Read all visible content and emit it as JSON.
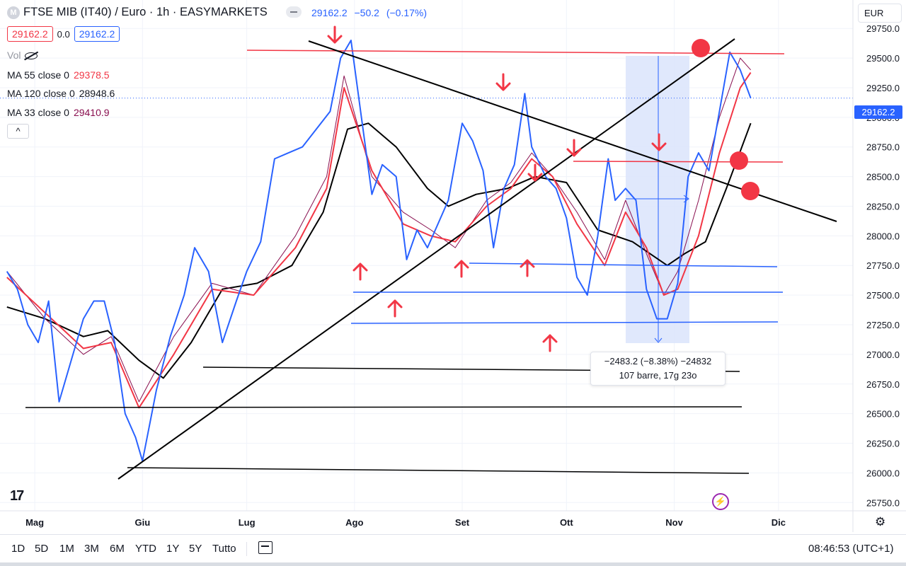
{
  "header": {
    "title": "FTSE MIB (IT40) / Euro · 1h · EASYMARKETS",
    "symbol_letter": "M",
    "last_price": "29162.2",
    "change": "−50.2",
    "change_pct": "(−0.17%)",
    "bid": "29162.2",
    "spread": "0.0",
    "ask": "29162.2",
    "currency": "EUR"
  },
  "legend": {
    "vol_label": "Vol",
    "ma55_label": "MA 55 close 0",
    "ma55_value": "29378.5",
    "ma120_label": "MA 120 close 0",
    "ma120_value": "28948.6",
    "ma33_label": "MA 33 close 0",
    "ma33_value": "29410.9",
    "collapse_glyph": "^"
  },
  "measure": {
    "line1": "−2483.2 (−8.38%) −24832",
    "line2": "107 barre, 17g 23o"
  },
  "toolbar": {
    "ranges": [
      "1D",
      "5D",
      "1M",
      "3M",
      "6M",
      "YTD",
      "1Y",
      "5Y",
      "Tutto"
    ],
    "clock": "08:46:53 (UTC+1)"
  },
  "logo_text": "17",
  "colors": {
    "price_line": "#2962ff",
    "ma_fast": "#f23645",
    "ma_mid": "#880e4f",
    "ma_slow": "#000000",
    "annotation_red": "#f23645",
    "measure_fill": "#dbe4fb"
  },
  "chart_data": {
    "type": "line",
    "title": "FTSE MIB (IT40) / Euro · 1h · EASYMARKETS",
    "xlabel": "",
    "ylabel": "",
    "x_ticks": [
      "Mag",
      "Giu",
      "Lug",
      "Ago",
      "Set",
      "Ott",
      "Nov",
      "Dic"
    ],
    "y_ticks": [
      29750,
      29500,
      29250,
      29000,
      28750,
      28500,
      28250,
      28000,
      27750,
      27500,
      27250,
      27000,
      26750,
      26500,
      26250,
      26000,
      25750
    ],
    "ylim": [
      25680,
      29990
    ],
    "grid": true,
    "series": [
      {
        "name": "FTSE MIB (IT40)",
        "x": [
          "2023-04-23",
          "2023-04-26",
          "2023-04-29",
          "2023-05-02",
          "2023-05-05",
          "2023-05-08",
          "2023-05-11",
          "2023-05-15",
          "2023-05-18",
          "2023-05-21",
          "2023-05-24",
          "2023-05-27",
          "2023-05-30",
          "2023-06-01",
          "2023-06-05",
          "2023-06-09",
          "2023-06-13",
          "2023-06-16",
          "2023-06-20",
          "2023-06-24",
          "2023-06-28",
          "2023-07-01",
          "2023-07-05",
          "2023-07-09",
          "2023-07-13",
          "2023-07-17",
          "2023-07-21",
          "2023-07-25",
          "2023-07-28",
          "2023-07-31",
          "2023-08-03",
          "2023-08-06",
          "2023-08-09",
          "2023-08-13",
          "2023-08-16",
          "2023-08-19",
          "2023-08-22",
          "2023-08-25",
          "2023-08-28",
          "2023-09-01",
          "2023-09-04",
          "2023-09-07",
          "2023-09-10",
          "2023-09-13",
          "2023-09-16",
          "2023-09-19",
          "2023-09-21",
          "2023-09-25",
          "2023-09-28",
          "2023-10-01",
          "2023-10-04",
          "2023-10-07",
          "2023-10-10",
          "2023-10-13",
          "2023-10-15",
          "2023-10-18",
          "2023-10-21",
          "2023-10-24",
          "2023-10-27",
          "2023-10-30",
          "2023-11-02",
          "2023-11-05",
          "2023-11-08",
          "2023-11-11",
          "2023-11-14",
          "2023-11-17",
          "2023-11-20",
          "2023-11-23"
        ],
        "values": [
          27700,
          27550,
          27250,
          27100,
          27450,
          26600,
          26900,
          27300,
          27450,
          27450,
          27100,
          26500,
          26300,
          26100,
          26700,
          27150,
          27500,
          27900,
          27700,
          27100,
          27450,
          27700,
          27950,
          28650,
          28700,
          28750,
          28900,
          29050,
          29500,
          29650,
          29000,
          28350,
          28600,
          28500,
          27800,
          28050,
          27900,
          28100,
          28300,
          28950,
          28800,
          28550,
          27900,
          28400,
          28600,
          29200,
          28750,
          28500,
          28400,
          28150,
          27650,
          27500,
          28000,
          28650,
          28300,
          28400,
          28300,
          27550,
          27300,
          27300,
          27600,
          28500,
          28700,
          28550,
          29050,
          29550,
          29400,
          29162
        ]
      },
      {
        "name": "MA 33 close 0",
        "x": [
          "2023-04-23",
          "2023-05-04",
          "2023-05-15",
          "2023-05-23",
          "2023-05-31",
          "2023-06-10",
          "2023-06-21",
          "2023-07-03",
          "2023-07-15",
          "2023-07-24",
          "2023-07-29",
          "2023-08-06",
          "2023-08-15",
          "2023-08-23",
          "2023-08-30",
          "2023-09-08",
          "2023-09-15",
          "2023-09-21",
          "2023-09-27",
          "2023-10-04",
          "2023-10-12",
          "2023-10-18",
          "2023-10-24",
          "2023-10-29",
          "2023-11-02",
          "2023-11-08",
          "2023-11-14",
          "2023-11-20",
          "2023-11-23"
        ],
        "values": [
          27700,
          27300,
          27000,
          27150,
          26600,
          27150,
          27600,
          27500,
          28000,
          28500,
          29350,
          28500,
          28200,
          28050,
          27900,
          28300,
          28450,
          28700,
          28500,
          28200,
          27800,
          28300,
          27850,
          27500,
          27700,
          28300,
          29000,
          29500,
          29400
        ]
      },
      {
        "name": "MA 55 close 0",
        "x": [
          "2023-04-23",
          "2023-05-04",
          "2023-05-15",
          "2023-05-23",
          "2023-05-31",
          "2023-06-10",
          "2023-06-21",
          "2023-07-03",
          "2023-07-15",
          "2023-07-24",
          "2023-07-29",
          "2023-08-06",
          "2023-08-15",
          "2023-08-23",
          "2023-08-30",
          "2023-09-08",
          "2023-09-15",
          "2023-09-21",
          "2023-09-27",
          "2023-10-04",
          "2023-10-12",
          "2023-10-18",
          "2023-10-24",
          "2023-10-29",
          "2023-11-02",
          "2023-11-08",
          "2023-11-14",
          "2023-11-20",
          "2023-11-23"
        ],
        "values": [
          27650,
          27350,
          27050,
          27100,
          26550,
          27000,
          27550,
          27500,
          27900,
          28400,
          29250,
          28550,
          28100,
          28000,
          27950,
          28250,
          28400,
          28650,
          28500,
          28100,
          27750,
          28200,
          27900,
          27500,
          27550,
          28000,
          28700,
          29250,
          29378
        ]
      },
      {
        "name": "MA 120 close 0",
        "x": [
          "2023-04-23",
          "2023-05-04",
          "2023-05-15",
          "2023-05-22",
          "2023-05-31",
          "2023-06-07",
          "2023-06-15",
          "2023-06-24",
          "2023-07-04",
          "2023-07-14",
          "2023-07-23",
          "2023-07-30",
          "2023-08-05",
          "2023-08-13",
          "2023-08-22",
          "2023-08-28",
          "2023-09-05",
          "2023-09-14",
          "2023-09-22",
          "2023-10-01",
          "2023-10-10",
          "2023-10-20",
          "2023-10-30",
          "2023-11-04",
          "2023-11-10",
          "2023-11-16",
          "2023-11-23"
        ],
        "values": [
          27400,
          27300,
          27150,
          27200,
          26950,
          26800,
          27100,
          27550,
          27600,
          27750,
          28200,
          28900,
          28950,
          28750,
          28400,
          28250,
          28350,
          28400,
          28500,
          28450,
          28050,
          27950,
          27750,
          27850,
          27950,
          28400,
          28950
        ]
      }
    ]
  }
}
